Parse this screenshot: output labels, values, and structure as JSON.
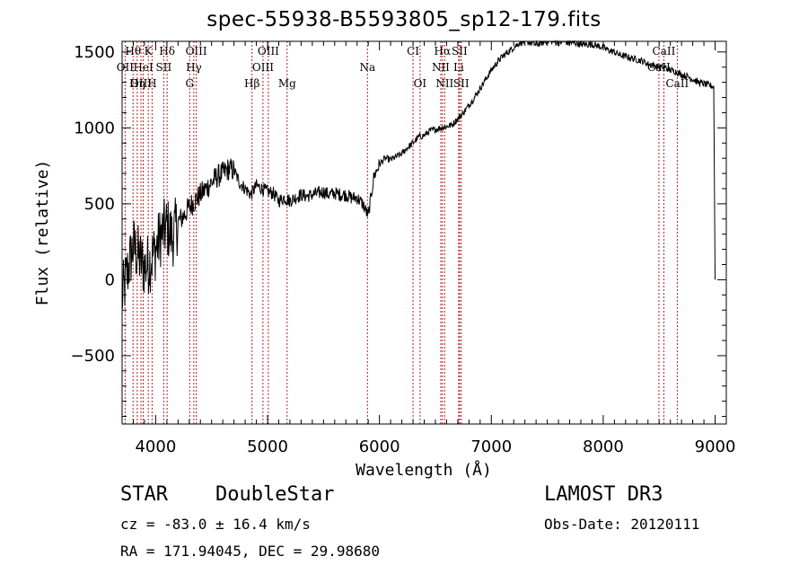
{
  "title": "spec-55938-B5593805_sp12-179.fits",
  "info": {
    "class": "STAR",
    "subclass": "DoubleStar",
    "survey": "LAMOST DR3",
    "cz": "cz = -83.0 ± 16.4 km/s",
    "obs_date": "Obs-Date: 20120111",
    "radec": "RA = 171.94045, DEC =  29.98680"
  },
  "chart_data": {
    "type": "line",
    "title": "spec-55938-B5593805_sp12-179.fits",
    "xlabel": "Wavelength (Å)",
    "ylabel": "Flux (relative)",
    "xlim": [
      3700,
      9100
    ],
    "ylim": [
      -950,
      1570
    ],
    "xticks": [
      4000,
      5000,
      6000,
      7000,
      8000,
      9000
    ],
    "yticks": [
      -500,
      0,
      500,
      1000,
      1500
    ],
    "series": [
      {
        "name": "flux",
        "x": [
          3700,
          3750,
          3800,
          3850,
          3900,
          3950,
          4000,
          4050,
          4100,
          4150,
          4200,
          4250,
          4300,
          4350,
          4400,
          4450,
          4500,
          4550,
          4600,
          4650,
          4700,
          4750,
          4800,
          4850,
          4900,
          4950,
          5000,
          5050,
          5100,
          5150,
          5200,
          5250,
          5300,
          5350,
          5400,
          5450,
          5500,
          5550,
          5600,
          5650,
          5700,
          5750,
          5800,
          5850,
          5900,
          5950,
          6000,
          6050,
          6100,
          6150,
          6200,
          6250,
          6300,
          6350,
          6400,
          6450,
          6500,
          6550,
          6600,
          6650,
          6700,
          6750,
          6800,
          6850,
          6900,
          6950,
          7000,
          7050,
          7100,
          7150,
          7200,
          7250,
          7300,
          7350,
          7400,
          7450,
          7500,
          7550,
          7600,
          7650,
          7700,
          7750,
          7800,
          7850,
          7900,
          7950,
          8000,
          8050,
          8100,
          8150,
          8200,
          8250,
          8300,
          8350,
          8400,
          8450,
          8500,
          8550,
          8600,
          8650,
          8700,
          8750,
          8800,
          8850,
          8900,
          8950,
          8990,
          9000
        ],
        "y": [
          -120,
          60,
          220,
          150,
          80,
          120,
          200,
          300,
          350,
          280,
          380,
          420,
          480,
          520,
          560,
          600,
          640,
          680,
          700,
          730,
          720,
          640,
          600,
          560,
          620,
          600,
          580,
          570,
          520,
          540,
          520,
          540,
          560,
          550,
          560,
          570,
          580,
          560,
          570,
          560,
          560,
          540,
          540,
          500,
          420,
          680,
          760,
          800,
          790,
          810,
          830,
          870,
          900,
          940,
          950,
          980,
          990,
          1000,
          1010,
          1020,
          1060,
          1100,
          1150,
          1200,
          1260,
          1320,
          1380,
          1430,
          1470,
          1500,
          1530,
          1560,
          1570,
          1560,
          1550,
          1560,
          1570,
          1570,
          1560,
          1570,
          1560,
          1560,
          1550,
          1550,
          1550,
          1540,
          1530,
          1510,
          1500,
          1480,
          1470,
          1460,
          1450,
          1440,
          1420,
          1410,
          1400,
          1400,
          1380,
          1370,
          1350,
          1340,
          1320,
          1300,
          1290,
          1280,
          1270,
          0
        ]
      }
    ],
    "lines": [
      {
        "name": "Hθ",
        "x": 3798,
        "row": 0
      },
      {
        "name": "K",
        "x": 3934,
        "row": 0
      },
      {
        "name": "Hδ",
        "x": 4102,
        "row": 0
      },
      {
        "name": "OIII",
        "x": 4363,
        "row": 0
      },
      {
        "name": "OIII",
        "x": 5007,
        "row": 0
      },
      {
        "name": "CI",
        "x": 6300,
        "row": 0
      },
      {
        "name": "Hα",
        "x": 6563,
        "row": 0
      },
      {
        "name": "SII",
        "x": 6716,
        "row": 0
      },
      {
        "name": "CaII",
        "x": 8542,
        "row": 0
      },
      {
        "name": "OII",
        "x": 3727,
        "row": 1
      },
      {
        "name": "HeI",
        "x": 3889,
        "row": 1
      },
      {
        "name": "SII",
        "x": 4072,
        "row": 1
      },
      {
        "name": "Hγ",
        "x": 4341,
        "row": 1
      },
      {
        "name": "OIII",
        "x": 4959,
        "row": 1
      },
      {
        "name": "Na",
        "x": 5893,
        "row": 1
      },
      {
        "name": "NII",
        "x": 6548,
        "row": 1
      },
      {
        "name": "Li",
        "x": 6708,
        "row": 1
      },
      {
        "name": "CaII",
        "x": 8498,
        "row": 1
      },
      {
        "name": "OIII",
        "x": 3869,
        "row": 2
      },
      {
        "name": "Hη",
        "x": 3835,
        "row": 2
      },
      {
        "name": "H",
        "x": 3968,
        "row": 2
      },
      {
        "name": "G",
        "x": 4304,
        "row": 2
      },
      {
        "name": "Hβ",
        "x": 4861,
        "row": 2
      },
      {
        "name": "Mg",
        "x": 5175,
        "row": 2
      },
      {
        "name": "OI",
        "x": 6363,
        "row": 2
      },
      {
        "name": "NII",
        "x": 6583,
        "row": 2
      },
      {
        "name": "SII",
        "x": 6731,
        "row": 2
      },
      {
        "name": "CaII",
        "x": 8662,
        "row": 2
      }
    ]
  }
}
